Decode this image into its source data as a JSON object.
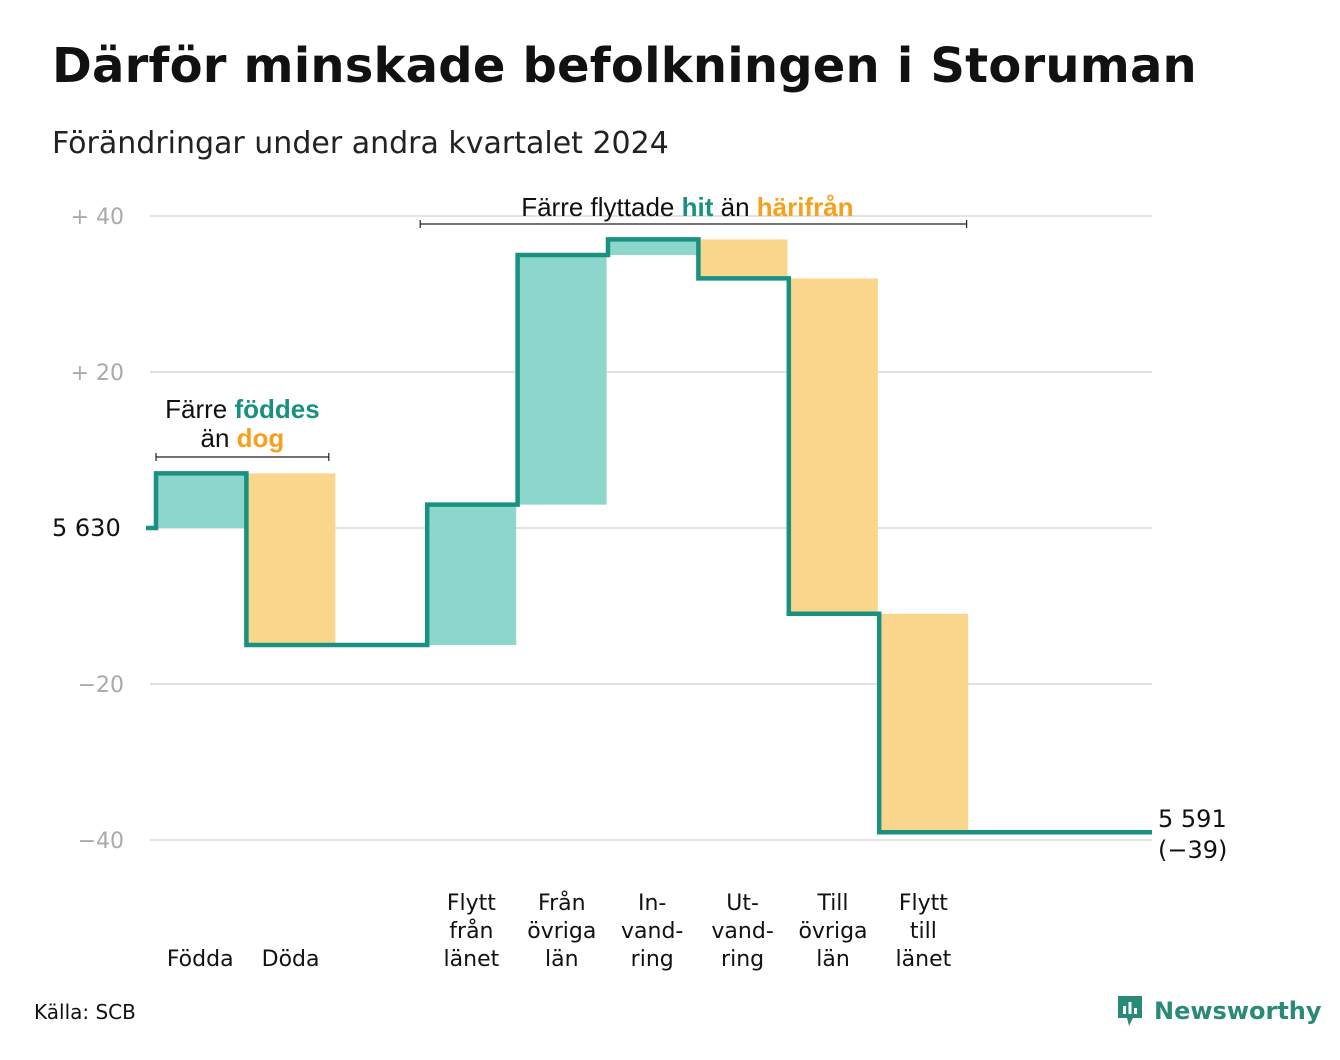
{
  "title": "Därför minskade befolkningen i Storuman",
  "subtitle": "Förändringar under andra kvartalet 2024",
  "source": "Källa: SCB",
  "brand": "Newsworthy",
  "colors": {
    "inflow": "#8dd6cc",
    "outflow": "#fad58c",
    "line": "#1a9080",
    "hit_text": "#1a9080",
    "harifran_text": "#f5a01e",
    "grid": "#e2e2e2",
    "tick": "#aaaaaa"
  },
  "annotations": {
    "births": {
      "line1_prefix": "Färre ",
      "line1_highlight": "föddes",
      "line2_prefix": "än ",
      "line2_highlight": "dog"
    },
    "migration": {
      "prefix": "Färre flyttade ",
      "highlight1": "hit",
      "middle": " än ",
      "highlight2": "härifrån"
    }
  },
  "chart_data": {
    "type": "waterfall",
    "start_value": 5630,
    "start_label": "5 630",
    "end_value": 5591,
    "end_label": "5 591",
    "end_change_label": "(−39)",
    "ylim": [
      -40,
      40
    ],
    "yticks": [
      {
        "value": 40,
        "label": "+  40"
      },
      {
        "value": 20,
        "label": "+  20"
      },
      {
        "value": 0,
        "label": "5  630"
      },
      {
        "value": -20,
        "label": "−20"
      },
      {
        "value": -40,
        "label": "−40"
      }
    ],
    "categories": [
      {
        "lines": [
          "Födda"
        ],
        "change": 7,
        "kind": "inflow"
      },
      {
        "lines": [
          "Döda"
        ],
        "change": -22,
        "kind": "outflow"
      },
      {
        "lines": [],
        "change": 0,
        "kind": "none"
      },
      {
        "lines": [
          "Flytt",
          "från",
          "länet"
        ],
        "change": 18,
        "kind": "inflow"
      },
      {
        "lines": [
          "Från",
          "övriga",
          "län"
        ],
        "change": 32,
        "kind": "inflow"
      },
      {
        "lines": [
          "In-",
          "vand-",
          "ring"
        ],
        "change": 2,
        "kind": "inflow"
      },
      {
        "lines": [
          "Ut-",
          "vand-",
          "ring"
        ],
        "change": -5,
        "kind": "outflow"
      },
      {
        "lines": [
          "Till",
          "övriga",
          "län"
        ],
        "change": -43,
        "kind": "outflow"
      },
      {
        "lines": [
          "Flytt",
          "till",
          "länet"
        ],
        "change": -28,
        "kind": "outflow"
      },
      {
        "lines": [],
        "change": 0,
        "kind": "none"
      }
    ]
  }
}
